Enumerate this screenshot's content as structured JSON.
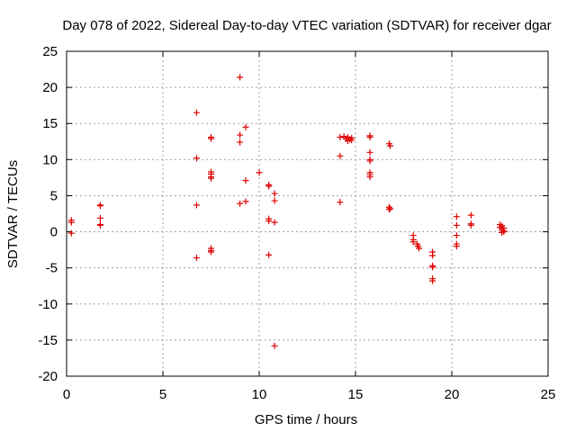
{
  "chart_data": {
    "type": "scatter",
    "title": "Day 078 of 2022, Sidereal Day-to-day VTEC variation (SDTVAR) for receiver dgar",
    "xlabel": "GPS time / hours",
    "ylabel": "SDTVAR / TECUs",
    "xlim": [
      0,
      25
    ],
    "ylim": [
      -20,
      25
    ],
    "xticks": [
      0,
      5,
      10,
      15,
      20,
      25
    ],
    "yticks": [
      -20,
      -15,
      -10,
      -5,
      0,
      5,
      10,
      15,
      20,
      25
    ],
    "grid": true,
    "marker": "+",
    "marker_color": "#e00000",
    "series": [
      {
        "name": "SDTVAR",
        "points": [
          [
            0.25,
            1.6
          ],
          [
            0.25,
            1.3
          ],
          [
            0.25,
            -0.2
          ],
          [
            1.75,
            3.7
          ],
          [
            1.75,
            3.6
          ],
          [
            1.75,
            1.9
          ],
          [
            1.75,
            1.0
          ],
          [
            1.75,
            0.9
          ],
          [
            6.75,
            16.5
          ],
          [
            6.75,
            10.2
          ],
          [
            6.75,
            3.7
          ],
          [
            6.75,
            -3.6
          ],
          [
            7.5,
            13.1
          ],
          [
            7.5,
            12.9
          ],
          [
            7.5,
            8.3
          ],
          [
            7.5,
            8.0
          ],
          [
            7.5,
            7.6
          ],
          [
            7.5,
            7.4
          ],
          [
            7.5,
            -2.3
          ],
          [
            7.5,
            -2.6
          ],
          [
            7.5,
            -2.8
          ],
          [
            9.0,
            21.4
          ],
          [
            9.0,
            13.4
          ],
          [
            9.0,
            12.4
          ],
          [
            9.0,
            3.9
          ],
          [
            9.3,
            14.5
          ],
          [
            9.3,
            7.1
          ],
          [
            9.3,
            4.2
          ],
          [
            10.0,
            8.2
          ],
          [
            10.5,
            6.5
          ],
          [
            10.5,
            6.3
          ],
          [
            10.5,
            1.8
          ],
          [
            10.5,
            1.5
          ],
          [
            10.5,
            -3.2
          ],
          [
            10.8,
            5.3
          ],
          [
            10.8,
            4.3
          ],
          [
            10.8,
            1.3
          ],
          [
            10.8,
            -15.8
          ],
          [
            14.2,
            13.1
          ],
          [
            14.2,
            10.5
          ],
          [
            14.2,
            4.1
          ],
          [
            14.4,
            13.2
          ],
          [
            14.5,
            12.9
          ],
          [
            14.6,
            13.1
          ],
          [
            14.6,
            12.6
          ],
          [
            14.7,
            12.8
          ],
          [
            14.8,
            13.0
          ],
          [
            14.8,
            12.7
          ],
          [
            15.75,
            13.3
          ],
          [
            15.75,
            13.1
          ],
          [
            15.75,
            11.0
          ],
          [
            15.75,
            10.0
          ],
          [
            15.75,
            9.8
          ],
          [
            15.75,
            8.2
          ],
          [
            15.75,
            7.9
          ],
          [
            15.75,
            7.6
          ],
          [
            16.75,
            12.2
          ],
          [
            16.8,
            11.9
          ],
          [
            16.75,
            3.4
          ],
          [
            16.8,
            3.2
          ],
          [
            16.75,
            3.1
          ],
          [
            18.0,
            -0.5
          ],
          [
            18.0,
            -1.1
          ],
          [
            18.0,
            -1.4
          ],
          [
            18.2,
            -1.7
          ],
          [
            18.25,
            -2.0
          ],
          [
            18.3,
            -2.3
          ],
          [
            19.0,
            -2.8
          ],
          [
            19.0,
            -3.3
          ],
          [
            19.0,
            -4.7
          ],
          [
            19.0,
            -4.9
          ],
          [
            19.0,
            -6.5
          ],
          [
            19.0,
            -6.8
          ],
          [
            20.25,
            2.1
          ],
          [
            20.25,
            0.9
          ],
          [
            20.25,
            -0.5
          ],
          [
            20.25,
            -1.7
          ],
          [
            20.25,
            -2.0
          ],
          [
            21.0,
            2.3
          ],
          [
            21.0,
            1.1
          ],
          [
            21.0,
            0.9
          ],
          [
            22.5,
            1.0
          ],
          [
            22.5,
            0.6
          ],
          [
            22.6,
            0.8
          ],
          [
            22.6,
            0.3
          ],
          [
            22.7,
            0.5
          ],
          [
            22.7,
            0.1
          ],
          [
            22.6,
            -0.1
          ],
          [
            22.7,
            0.0
          ]
        ]
      }
    ]
  }
}
